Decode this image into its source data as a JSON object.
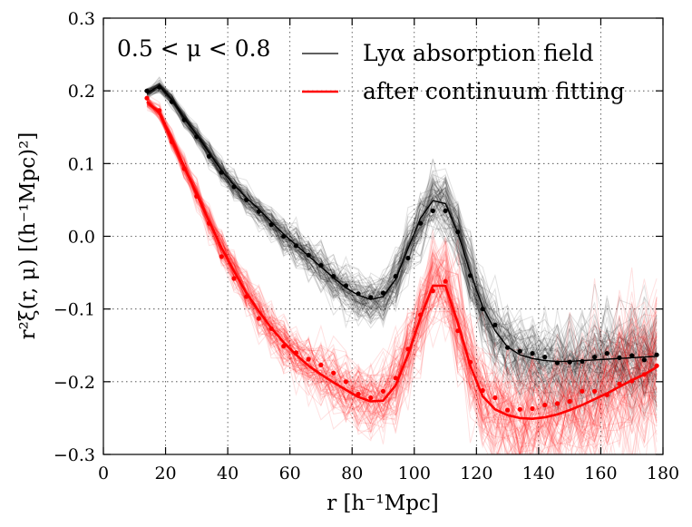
{
  "chart_data": {
    "type": "line",
    "title": "",
    "xlabel": "r [h⁻¹Mpc]",
    "ylabel": "r²ξ(r, μ) [(h⁻¹Mpc)²]",
    "xlim": [
      0,
      180
    ],
    "ylim": [
      -0.3,
      0.3
    ],
    "x_ticks": [
      0,
      20,
      40,
      60,
      80,
      100,
      120,
      140,
      160,
      180
    ],
    "x_tick_labels": [
      "0",
      "20",
      "40",
      "60",
      "80",
      "100",
      "120",
      "140",
      "160",
      "180"
    ],
    "y_ticks": [
      -0.3,
      -0.2,
      -0.1,
      0.0,
      0.1,
      0.2,
      0.3
    ],
    "y_tick_labels": [
      "−0.3",
      "−0.2",
      "−0.1",
      "0.0",
      "0.1",
      "0.2",
      "0.3"
    ],
    "grid": true,
    "annotation": "0.5 < μ < 0.8",
    "legend": {
      "location": "top-right",
      "entries": [
        {
          "label": "Lyα absorption field",
          "color": "#000000"
        },
        {
          "label": "after continuum fitting",
          "color": "#ff0000"
        }
      ]
    },
    "series": [
      {
        "name": "Lyα absorption field",
        "kind": "model-line",
        "color": "#000000",
        "x": [
          14,
          18,
          22,
          26,
          30,
          34,
          38,
          42,
          46,
          50,
          54,
          58,
          62,
          66,
          70,
          74,
          78,
          82,
          86,
          90,
          94,
          98,
          102,
          106,
          110,
          114,
          118,
          122,
          126,
          130,
          134,
          138,
          142,
          146,
          150,
          154,
          158,
          162,
          166,
          170,
          174,
          178
        ],
        "y": [
          0.197,
          0.207,
          0.188,
          0.163,
          0.14,
          0.115,
          0.09,
          0.071,
          0.053,
          0.037,
          0.02,
          0.003,
          -0.012,
          -0.027,
          -0.042,
          -0.057,
          -0.071,
          -0.081,
          -0.087,
          -0.083,
          -0.059,
          -0.017,
          0.025,
          0.049,
          0.045,
          0.005,
          -0.05,
          -0.097,
          -0.13,
          -0.152,
          -0.163,
          -0.168,
          -0.171,
          -0.172,
          -0.172,
          -0.171,
          -0.17,
          -0.169,
          -0.168,
          -0.167,
          -0.166,
          -0.165
        ]
      },
      {
        "name": "after continuum fitting",
        "kind": "model-line",
        "color": "#ff0000",
        "x": [
          14,
          18,
          22,
          26,
          30,
          34,
          38,
          42,
          46,
          50,
          54,
          58,
          62,
          66,
          70,
          74,
          78,
          82,
          86,
          90,
          94,
          98,
          102,
          106,
          110,
          114,
          118,
          122,
          126,
          130,
          134,
          138,
          142,
          146,
          150,
          154,
          158,
          162,
          166,
          170,
          174,
          178
        ],
        "y": [
          0.185,
          0.17,
          0.133,
          0.096,
          0.058,
          0.021,
          -0.016,
          -0.048,
          -0.078,
          -0.103,
          -0.126,
          -0.146,
          -0.163,
          -0.178,
          -0.19,
          -0.201,
          -0.211,
          -0.221,
          -0.227,
          -0.226,
          -0.205,
          -0.163,
          -0.112,
          -0.068,
          -0.068,
          -0.119,
          -0.178,
          -0.22,
          -0.238,
          -0.246,
          -0.25,
          -0.251,
          -0.249,
          -0.245,
          -0.239,
          -0.232,
          -0.224,
          -0.216,
          -0.207,
          -0.198,
          -0.19,
          -0.18
        ]
      },
      {
        "name": "Lyα absorption field (mean)",
        "kind": "points",
        "color": "#000000",
        "x": [
          14,
          18,
          22,
          26,
          30,
          34,
          38,
          42,
          46,
          50,
          54,
          58,
          62,
          66,
          70,
          74,
          78,
          82,
          86,
          90,
          94,
          98,
          102,
          106,
          110,
          114,
          118,
          122,
          126,
          130,
          134,
          138,
          142,
          146,
          150,
          154,
          158,
          162,
          166,
          170,
          174,
          178
        ],
        "y": [
          0.2,
          0.205,
          0.185,
          0.16,
          0.137,
          0.11,
          0.088,
          0.068,
          0.05,
          0.034,
          0.016,
          0.0,
          -0.013,
          -0.026,
          -0.04,
          -0.055,
          -0.068,
          -0.079,
          -0.084,
          -0.078,
          -0.055,
          -0.03,
          0.018,
          0.035,
          0.035,
          0.006,
          -0.054,
          -0.1,
          -0.122,
          -0.153,
          -0.158,
          -0.161,
          -0.166,
          -0.174,
          -0.173,
          -0.172,
          -0.166,
          -0.161,
          -0.167,
          -0.164,
          -0.17,
          -0.163
        ]
      },
      {
        "name": "after continuum fitting (mean)",
        "kind": "points",
        "color": "#ff0000",
        "x": [
          14,
          18,
          22,
          26,
          30,
          34,
          38,
          42,
          46,
          50,
          54,
          58,
          62,
          66,
          70,
          74,
          78,
          82,
          86,
          90,
          94,
          98,
          102,
          106,
          110,
          114,
          118,
          122,
          126,
          130,
          134,
          138,
          142,
          146,
          150,
          154,
          158,
          162,
          166,
          170,
          174,
          178
        ],
        "y": [
          0.19,
          0.173,
          0.13,
          0.093,
          0.055,
          0.018,
          -0.028,
          -0.058,
          -0.083,
          -0.113,
          -0.127,
          -0.151,
          -0.16,
          -0.169,
          -0.177,
          -0.188,
          -0.2,
          -0.217,
          -0.222,
          -0.213,
          -0.195,
          -0.155,
          -0.108,
          -0.075,
          -0.062,
          -0.13,
          -0.173,
          -0.212,
          -0.222,
          -0.239,
          -0.238,
          -0.237,
          -0.232,
          -0.23,
          -0.227,
          -0.213,
          -0.213,
          -0.218,
          -0.203,
          -0.199,
          -0.19,
          -0.178
        ]
      }
    ],
    "realizations": {
      "description": "Individual mock realizations drawn as faint lines",
      "count_per_group": 90
    }
  }
}
